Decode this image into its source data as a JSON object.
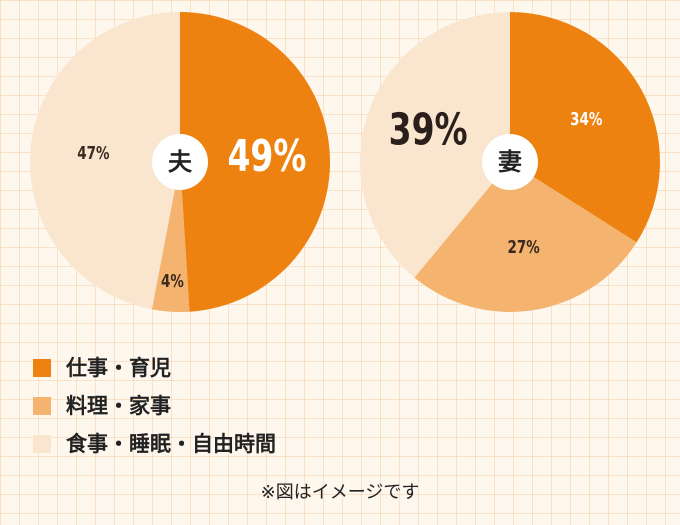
{
  "legend": {
    "categories": [
      "仕事・育児",
      "料理・家事",
      "食事・睡眠・自由時間"
    ],
    "colors": [
      "#ee8211",
      "#f4b36e",
      "#fae6cf"
    ]
  },
  "chart_data": [
    {
      "type": "pie",
      "title": "夫",
      "values": [
        49,
        4,
        47
      ],
      "value_labels": [
        "49%",
        "4%",
        "47%"
      ]
    },
    {
      "type": "pie",
      "title": "妻",
      "values": [
        34,
        27,
        39
      ],
      "value_labels": [
        "34%",
        "27%",
        "39%"
      ]
    }
  ],
  "note": "※図はイメージです"
}
